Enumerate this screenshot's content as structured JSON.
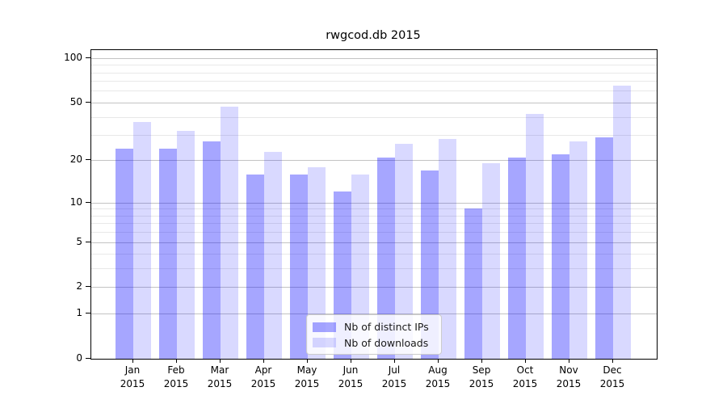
{
  "title": "rwgcod.db 2015",
  "chart_data": {
    "type": "bar",
    "title": "rwgcod.db 2015",
    "xlabel": "",
    "ylabel": "",
    "yscale": "log1p",
    "categories": [
      "Jan",
      "Feb",
      "Mar",
      "Apr",
      "May",
      "Jun",
      "Jul",
      "Aug",
      "Sep",
      "Oct",
      "Nov",
      "Dec"
    ],
    "category_year": "2015",
    "series": [
      {
        "name": "Nb of distinct IPs",
        "color": "rgba(0,0,255,0.35)",
        "values": [
          24,
          24,
          27,
          16,
          16,
          12,
          21,
          17,
          9,
          21,
          22,
          29
        ]
      },
      {
        "name": "Nb of downloads",
        "color": "rgba(0,0,255,0.15)",
        "values": [
          37,
          32,
          47,
          23,
          18,
          16,
          26,
          28,
          19,
          42,
          27,
          65
        ]
      }
    ],
    "yticks": [
      0,
      1,
      2,
      5,
      10,
      20,
      50,
      100
    ],
    "minor_gridlines": [
      3,
      4,
      6,
      7,
      8,
      9,
      30,
      40,
      60,
      70,
      80,
      90
    ],
    "ylim": [
      0,
      113
    ],
    "grid": true,
    "legend_position": "lower center",
    "major_grid_color": "#c3c3c3",
    "minor_grid_color": "#e8e8e8"
  }
}
